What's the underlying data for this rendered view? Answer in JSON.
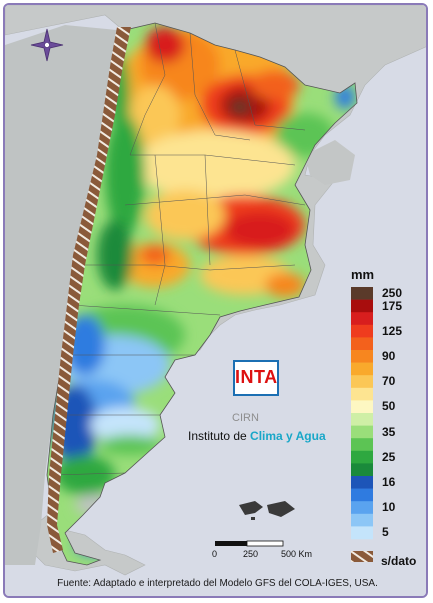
{
  "map": {
    "legend": {
      "unit": "mm",
      "levels": [
        {
          "label": "250",
          "color": "#5a3a2a"
        },
        {
          "label": "175",
          "color": "#a80d0d"
        },
        {
          "label": "",
          "color": "#d81e1e"
        },
        {
          "label": "125",
          "color": "#ef3c1e"
        },
        {
          "label": "",
          "color": "#f3611c"
        },
        {
          "label": "90",
          "color": "#f7861f"
        },
        {
          "label": "",
          "color": "#f9a92c"
        },
        {
          "label": "70",
          "color": "#fbc756"
        },
        {
          "label": "",
          "color": "#fde491"
        },
        {
          "label": "50",
          "color": "#fdf7c2"
        },
        {
          "label": "",
          "color": "#cfefa6"
        },
        {
          "label": "35",
          "color": "#9ade7a"
        },
        {
          "label": "",
          "color": "#5cc454"
        },
        {
          "label": "25",
          "color": "#2ea840"
        },
        {
          "label": "",
          "color": "#1a8a3b"
        },
        {
          "label": "16",
          "color": "#1d55b8"
        },
        {
          "label": "",
          "color": "#2f7be0"
        },
        {
          "label": "10",
          "color": "#5aa3ef"
        },
        {
          "label": "",
          "color": "#8cc6f6"
        },
        {
          "label": "5",
          "color": "#c4e4fb"
        }
      ],
      "no_data": {
        "label": "s/dato",
        "color": "#8a5a3a"
      }
    },
    "scale_bar": {
      "start": "0",
      "mid": "250",
      "end": "500 Km"
    },
    "logo": {
      "name": "INTA",
      "sub": "CIRN"
    },
    "institute": {
      "prefix": "Instituto de ",
      "highlight": "Clima y Agua"
    },
    "source": "Fuente: Adaptado e interpretado del Modelo GFS del COLA-IGES, USA."
  }
}
